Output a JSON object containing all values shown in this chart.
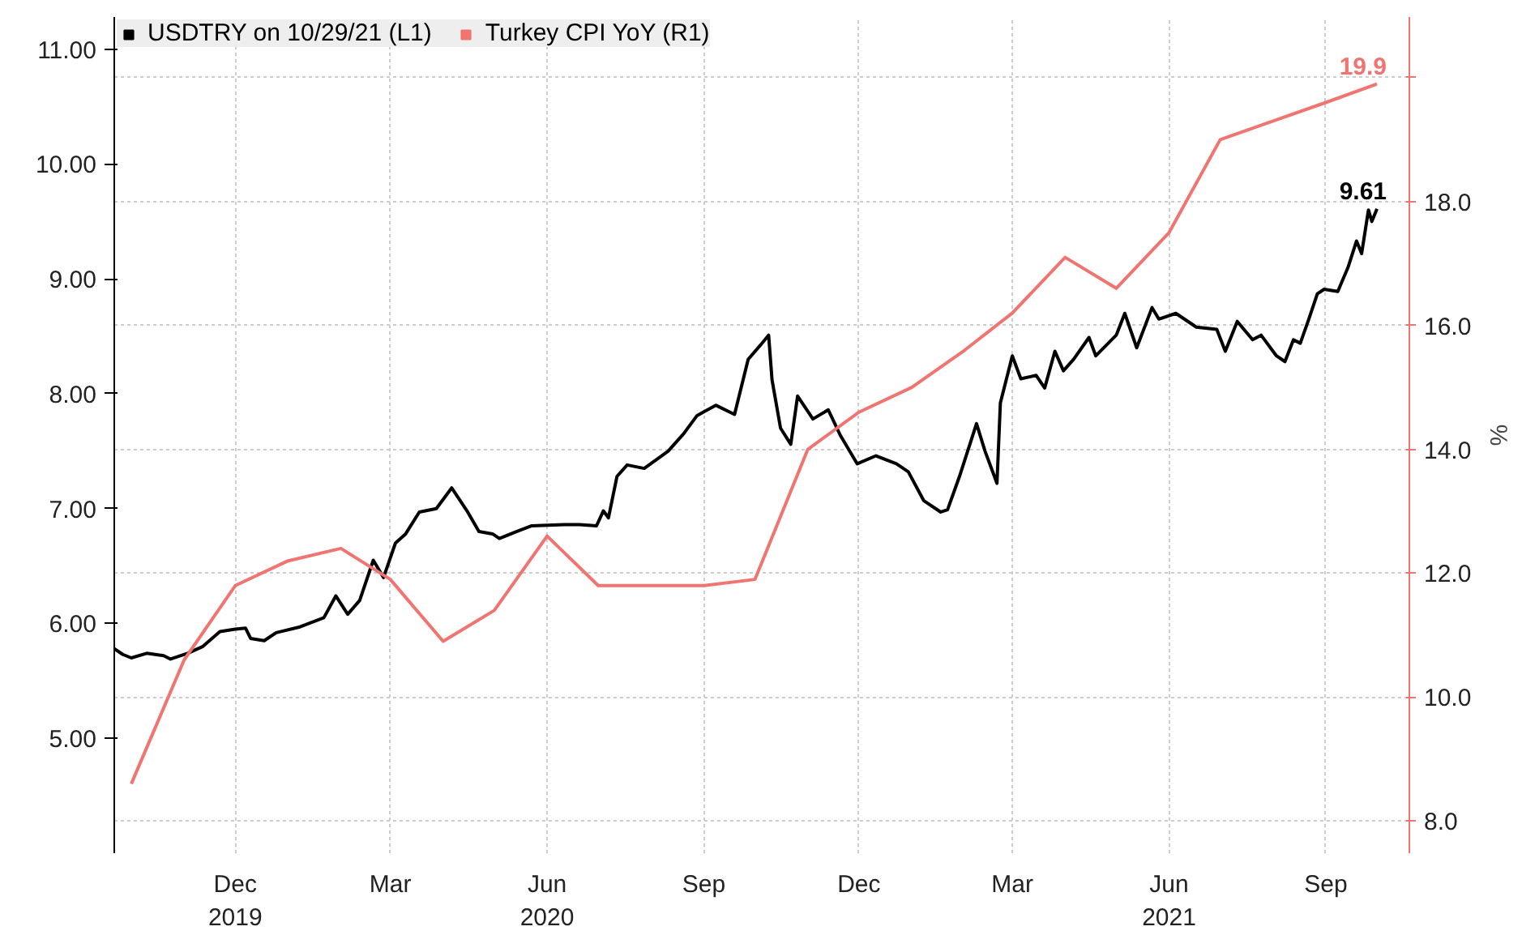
{
  "chart_data": {
    "type": "line",
    "xlim": [
      "2019-09-21",
      "2021-10-20"
    ],
    "xticks": [
      {
        "value": "2019-12-01",
        "label": "Dec\n2019"
      },
      {
        "value": "2020-03-01",
        "label": "Mar"
      },
      {
        "value": "2020-06-01",
        "label": "Jun\n2020"
      },
      {
        "value": "2020-09-01",
        "label": "Sep"
      },
      {
        "value": "2020-12-01",
        "label": "Dec"
      },
      {
        "value": "2021-03-01",
        "label": "Mar"
      },
      {
        "value": "2021-06-01",
        "label": "Jun\n2021"
      },
      {
        "value": "2021-09-01",
        "label": "Sep"
      }
    ],
    "ylim": [
      4.0,
      11.28
    ],
    "yticks": [
      {
        "value": 5,
        "label": "5.00"
      },
      {
        "value": 6,
        "label": "6.00"
      },
      {
        "value": 7,
        "label": "7.00"
      },
      {
        "value": 8,
        "label": "8.00"
      },
      {
        "value": 9,
        "label": "9.00"
      },
      {
        "value": 10,
        "label": "10.00"
      },
      {
        "value": 11,
        "label": "11.00"
      }
    ],
    "y2lim": [
      7.48,
      20.98
    ],
    "y2ticks": [
      {
        "value": 8,
        "label": "8.0"
      },
      {
        "value": 10,
        "label": "10.0"
      },
      {
        "value": 12,
        "label": "12.0"
      },
      {
        "value": 14,
        "label": "14.0"
      },
      {
        "value": 16,
        "label": "16.0"
      },
      {
        "value": 18,
        "label": "18.0"
      },
      {
        "value": 20,
        "label": null
      }
    ],
    "y2label": "%",
    "grid": true,
    "legend": "top left",
    "marker": "none",
    "line_style": "solid",
    "series": [
      {
        "name": "USDTRY on 10/29/21 (L1)",
        "color": "#000000",
        "x": [
          "2019-09-21",
          "2019-09-26",
          "2019-10-01",
          "2019-10-10",
          "2019-10-20",
          "2019-10-24",
          "2019-11-03",
          "2019-11-12",
          "2019-11-22",
          "2019-12-01",
          "2019-12-07",
          "2019-12-10",
          "2019-12-18",
          "2019-12-25",
          "2020-01-08",
          "2020-01-22",
          "2020-01-29",
          "2020-02-05",
          "2020-02-12",
          "2020-02-20",
          "2020-02-26",
          "2020-03-04",
          "2020-03-10",
          "2020-03-18",
          "2020-03-28",
          "2020-04-06",
          "2020-04-15",
          "2020-04-22",
          "2020-04-30",
          "2020-05-04",
          "2020-05-14",
          "2020-05-23",
          "2020-06-11",
          "2020-06-20",
          "2020-06-30",
          "2020-07-04",
          "2020-07-07",
          "2020-07-12",
          "2020-07-18",
          "2020-07-28",
          "2020-08-11",
          "2020-08-20",
          "2020-08-28",
          "2020-09-08",
          "2020-09-19",
          "2020-09-27",
          "2020-10-04",
          "2020-10-09",
          "2020-10-11",
          "2020-10-16",
          "2020-10-22",
          "2020-10-26",
          "2020-11-04",
          "2020-11-13",
          "2020-11-20",
          "2020-11-30",
          "2020-12-11",
          "2020-12-23",
          "2020-12-30",
          "2021-01-08",
          "2021-01-18",
          "2021-01-22",
          "2021-01-29",
          "2021-02-08",
          "2021-02-13",
          "2021-02-20",
          "2021-02-22",
          "2021-03-01",
          "2021-03-06",
          "2021-03-15",
          "2021-03-20",
          "2021-03-26",
          "2021-03-31",
          "2021-04-06",
          "2021-04-15",
          "2021-04-19",
          "2021-05-01",
          "2021-05-06",
          "2021-05-13",
          "2021-05-22",
          "2021-05-26",
          "2021-06-05",
          "2021-06-17",
          "2021-06-29",
          "2021-07-04",
          "2021-07-11",
          "2021-07-20",
          "2021-07-25",
          "2021-08-03",
          "2021-08-08",
          "2021-08-13",
          "2021-08-17",
          "2021-08-22",
          "2021-08-27",
          "2021-08-31",
          "2021-09-08",
          "2021-09-14",
          "2021-09-19",
          "2021-09-22",
          "2021-09-26",
          "2021-09-28",
          "2021-10-01"
        ],
        "values": [
          5.78,
          5.73,
          5.7,
          5.74,
          5.72,
          5.69,
          5.74,
          5.8,
          5.93,
          5.95,
          5.96,
          5.87,
          5.85,
          5.92,
          5.97,
          6.05,
          6.24,
          6.08,
          6.2,
          6.55,
          6.4,
          6.7,
          6.78,
          6.97,
          7.0,
          7.18,
          6.98,
          6.8,
          6.78,
          6.74,
          6.8,
          6.85,
          6.86,
          6.86,
          6.85,
          6.98,
          6.92,
          7.28,
          7.38,
          7.35,
          7.5,
          7.65,
          7.81,
          7.9,
          7.82,
          8.3,
          8.42,
          8.51,
          8.12,
          7.7,
          7.56,
          7.98,
          7.78,
          7.86,
          7.64,
          7.39,
          7.46,
          7.39,
          7.32,
          7.07,
          6.97,
          6.99,
          7.28,
          7.74,
          7.5,
          7.22,
          7.92,
          8.33,
          8.13,
          8.16,
          8.05,
          8.37,
          8.2,
          8.3,
          8.49,
          8.33,
          8.51,
          8.7,
          8.4,
          8.75,
          8.65,
          8.7,
          8.58,
          8.56,
          8.37,
          8.63,
          8.47,
          8.51,
          8.33,
          8.28,
          8.47,
          8.44,
          8.65,
          8.87,
          8.91,
          8.89,
          9.1,
          9.33,
          9.22,
          9.6,
          9.5,
          9.61
        ],
        "value_labels": [
          null,
          null,
          null,
          null,
          null,
          null,
          null,
          null,
          null,
          null,
          null,
          null,
          null,
          null,
          null,
          null,
          null,
          null,
          null,
          null,
          null,
          null,
          null,
          null,
          null,
          null,
          null,
          null,
          null,
          null,
          null,
          null,
          null,
          null,
          null,
          null,
          null,
          null,
          null,
          null,
          null,
          null,
          null,
          null,
          null,
          null,
          null,
          null,
          null,
          null,
          null,
          null,
          null,
          null,
          null,
          null,
          null,
          null,
          null,
          null,
          null,
          null,
          null,
          null,
          null,
          null,
          null,
          null,
          null,
          null,
          null,
          null,
          null,
          null,
          null,
          null,
          null,
          null,
          null,
          null,
          null,
          null,
          null,
          null,
          null,
          null,
          null,
          null,
          null,
          null,
          null,
          null,
          null,
          null,
          null,
          null,
          null,
          null,
          null,
          null,
          null,
          "9.61"
        ]
      },
      {
        "name": "Turkey CPI YoY (R1)",
        "color": "#f07470",
        "axis": "y2",
        "x": [
          "2019-10-01",
          "2019-11-01",
          "2019-12-01",
          "2020-01-01",
          "2020-02-01",
          "2020-03-01",
          "2020-04-01",
          "2020-05-01",
          "2020-06-01",
          "2020-07-01",
          "2020-08-01",
          "2020-09-01",
          "2020-10-01",
          "2020-11-01",
          "2020-12-01",
          "2021-01-01",
          "2021-02-01",
          "2021-03-01",
          "2021-04-01",
          "2021-05-01",
          "2021-06-01",
          "2021-07-01",
          "2021-08-01",
          "2021-09-01",
          "2021-10-01"
        ],
        "values": [
          8.6,
          10.6,
          11.8,
          12.2,
          12.4,
          11.9,
          10.9,
          11.4,
          12.6,
          11.8,
          11.8,
          11.8,
          11.9,
          14.0,
          14.6,
          15.0,
          15.6,
          16.2,
          17.1,
          16.6,
          17.5,
          19.0,
          19.3,
          19.6,
          19.9
        ],
        "value_labels": [
          null,
          null,
          null,
          null,
          null,
          null,
          null,
          null,
          null,
          null,
          null,
          null,
          null,
          null,
          null,
          null,
          null,
          null,
          null,
          null,
          null,
          null,
          null,
          null,
          "19.9"
        ]
      }
    ]
  }
}
